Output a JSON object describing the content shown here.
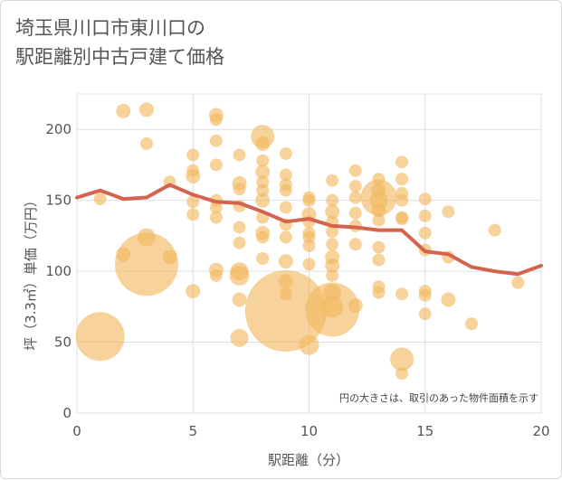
{
  "chart_data": {
    "type": "scatter",
    "title_lines": [
      "埼玉県川口市東川口の",
      "駅距離別中古戸建て価格"
    ],
    "xlabel": "駅距離（分）",
    "ylabel": "坪（3.3㎡）単価（万円）",
    "xlim": [
      0,
      20
    ],
    "ylim": [
      0,
      225
    ],
    "x_ticks": [
      0,
      5,
      10,
      15,
      20
    ],
    "y_ticks": [
      0,
      50,
      100,
      150,
      200
    ],
    "grid": true,
    "annotation": "円の大きさは、取引のあった物件面積を示す",
    "colors": {
      "bubble": "#f2b85e",
      "line": "#d4644e",
      "grid": "#d7e0ea",
      "text": "#555555"
    },
    "series": [
      {
        "kind": "bubble",
        "points": [
          {
            "x": 1,
            "y": 54,
            "r": 27
          },
          {
            "x": 1,
            "y": 151,
            "r": 7
          },
          {
            "x": 2,
            "y": 213,
            "r": 8
          },
          {
            "x": 2,
            "y": 112,
            "r": 8
          },
          {
            "x": 3,
            "y": 214,
            "r": 8
          },
          {
            "x": 3,
            "y": 190,
            "r": 7
          },
          {
            "x": 3,
            "y": 124,
            "r": 10
          },
          {
            "x": 3,
            "y": 105,
            "r": 35
          },
          {
            "x": 4,
            "y": 163,
            "r": 7
          },
          {
            "x": 4,
            "y": 110,
            "r": 8
          },
          {
            "x": 5,
            "y": 182,
            "r": 7
          },
          {
            "x": 5,
            "y": 171,
            "r": 7
          },
          {
            "x": 5,
            "y": 167,
            "r": 8
          },
          {
            "x": 5,
            "y": 149,
            "r": 7
          },
          {
            "x": 5,
            "y": 140,
            "r": 7
          },
          {
            "x": 5,
            "y": 86,
            "r": 8
          },
          {
            "x": 6,
            "y": 210,
            "r": 8
          },
          {
            "x": 6,
            "y": 207,
            "r": 7
          },
          {
            "x": 6,
            "y": 192,
            "r": 7
          },
          {
            "x": 6,
            "y": 175,
            "r": 7
          },
          {
            "x": 6,
            "y": 150,
            "r": 7
          },
          {
            "x": 6,
            "y": 145,
            "r": 7
          },
          {
            "x": 6,
            "y": 138,
            "r": 7
          },
          {
            "x": 6,
            "y": 101,
            "r": 8
          },
          {
            "x": 6,
            "y": 97,
            "r": 7
          },
          {
            "x": 7,
            "y": 182,
            "r": 7
          },
          {
            "x": 7,
            "y": 162,
            "r": 8
          },
          {
            "x": 7,
            "y": 158,
            "r": 7
          },
          {
            "x": 7,
            "y": 146,
            "r": 7
          },
          {
            "x": 7,
            "y": 131,
            "r": 7
          },
          {
            "x": 7,
            "y": 120,
            "r": 7
          },
          {
            "x": 7,
            "y": 100,
            "r": 10
          },
          {
            "x": 7,
            "y": 97,
            "r": 11
          },
          {
            "x": 7,
            "y": 80,
            "r": 8
          },
          {
            "x": 7,
            "y": 53,
            "r": 10
          },
          {
            "x": 8,
            "y": 195,
            "r": 13
          },
          {
            "x": 8,
            "y": 190,
            "r": 8
          },
          {
            "x": 8,
            "y": 178,
            "r": 7
          },
          {
            "x": 8,
            "y": 170,
            "r": 8
          },
          {
            "x": 8,
            "y": 163,
            "r": 7
          },
          {
            "x": 8,
            "y": 157,
            "r": 7
          },
          {
            "x": 8,
            "y": 150,
            "r": 8
          },
          {
            "x": 8,
            "y": 138,
            "r": 7
          },
          {
            "x": 8,
            "y": 127,
            "r": 8
          },
          {
            "x": 8,
            "y": 124,
            "r": 7
          },
          {
            "x": 8,
            "y": 109,
            "r": 7
          },
          {
            "x": 9,
            "y": 183,
            "r": 7
          },
          {
            "x": 9,
            "y": 168,
            "r": 7
          },
          {
            "x": 9,
            "y": 161,
            "r": 7
          },
          {
            "x": 9,
            "y": 157,
            "r": 7
          },
          {
            "x": 9,
            "y": 145,
            "r": 7
          },
          {
            "x": 9,
            "y": 133,
            "r": 7
          },
          {
            "x": 9,
            "y": 124,
            "r": 7
          },
          {
            "x": 9,
            "y": 107,
            "r": 8
          },
          {
            "x": 9,
            "y": 93,
            "r": 8
          },
          {
            "x": 9,
            "y": 84,
            "r": 7
          },
          {
            "x": 9,
            "y": 72,
            "r": 45
          },
          {
            "x": 10,
            "y": 152,
            "r": 7
          },
          {
            "x": 10,
            "y": 150,
            "r": 7
          },
          {
            "x": 10,
            "y": 140,
            "r": 8
          },
          {
            "x": 10,
            "y": 135,
            "r": 7
          },
          {
            "x": 10,
            "y": 127,
            "r": 7
          },
          {
            "x": 10,
            "y": 124,
            "r": 7
          },
          {
            "x": 10,
            "y": 118,
            "r": 7
          },
          {
            "x": 10,
            "y": 105,
            "r": 7
          },
          {
            "x": 10,
            "y": 48,
            "r": 11
          },
          {
            "x": 11,
            "y": 164,
            "r": 7
          },
          {
            "x": 11,
            "y": 150,
            "r": 7
          },
          {
            "x": 11,
            "y": 142,
            "r": 8
          },
          {
            "x": 11,
            "y": 135,
            "r": 7
          },
          {
            "x": 11,
            "y": 128,
            "r": 7
          },
          {
            "x": 11,
            "y": 119,
            "r": 7
          },
          {
            "x": 11,
            "y": 110,
            "r": 8
          },
          {
            "x": 11,
            "y": 104,
            "r": 8
          },
          {
            "x": 11,
            "y": 97,
            "r": 7
          },
          {
            "x": 11,
            "y": 85,
            "r": 10
          },
          {
            "x": 11,
            "y": 75,
            "r": 12
          },
          {
            "x": 11,
            "y": 73,
            "r": 30
          },
          {
            "x": 12,
            "y": 171,
            "r": 7
          },
          {
            "x": 12,
            "y": 160,
            "r": 7
          },
          {
            "x": 12,
            "y": 152,
            "r": 7
          },
          {
            "x": 12,
            "y": 141,
            "r": 7
          },
          {
            "x": 12,
            "y": 132,
            "r": 7
          },
          {
            "x": 12,
            "y": 119,
            "r": 7
          },
          {
            "x": 12,
            "y": 76,
            "r": 8
          },
          {
            "x": 13,
            "y": 165,
            "r": 7
          },
          {
            "x": 13,
            "y": 157,
            "r": 8
          },
          {
            "x": 13,
            "y": 152,
            "r": 20
          },
          {
            "x": 13,
            "y": 150,
            "r": 10
          },
          {
            "x": 13,
            "y": 143,
            "r": 8
          },
          {
            "x": 13,
            "y": 136,
            "r": 7
          },
          {
            "x": 13,
            "y": 117,
            "r": 7
          },
          {
            "x": 13,
            "y": 108,
            "r": 7
          },
          {
            "x": 13,
            "y": 89,
            "r": 7
          },
          {
            "x": 13,
            "y": 85,
            "r": 7
          },
          {
            "x": 14,
            "y": 177,
            "r": 7
          },
          {
            "x": 14,
            "y": 165,
            "r": 7
          },
          {
            "x": 14,
            "y": 155,
            "r": 7
          },
          {
            "x": 14,
            "y": 150,
            "r": 7
          },
          {
            "x": 14,
            "y": 138,
            "r": 7
          },
          {
            "x": 14,
            "y": 137,
            "r": 7
          },
          {
            "x": 14,
            "y": 84,
            "r": 7
          },
          {
            "x": 14,
            "y": 38,
            "r": 13
          },
          {
            "x": 14,
            "y": 28,
            "r": 7
          },
          {
            "x": 15,
            "y": 151,
            "r": 7
          },
          {
            "x": 15,
            "y": 139,
            "r": 7
          },
          {
            "x": 15,
            "y": 127,
            "r": 7
          },
          {
            "x": 15,
            "y": 115,
            "r": 7
          },
          {
            "x": 15,
            "y": 86,
            "r": 7
          },
          {
            "x": 15,
            "y": 83,
            "r": 7
          },
          {
            "x": 15,
            "y": 70,
            "r": 7
          },
          {
            "x": 16,
            "y": 142,
            "r": 7
          },
          {
            "x": 16,
            "y": 110,
            "r": 7
          },
          {
            "x": 16,
            "y": 80,
            "r": 8
          },
          {
            "x": 17,
            "y": 63,
            "r": 7
          },
          {
            "x": 18,
            "y": 129,
            "r": 7
          },
          {
            "x": 19,
            "y": 92,
            "r": 7
          }
        ]
      },
      {
        "kind": "line",
        "x": [
          0,
          1,
          2,
          3,
          4,
          5,
          6,
          7,
          8,
          9,
          10,
          11,
          12,
          13,
          14,
          15,
          16,
          17,
          18,
          19,
          20
        ],
        "y": [
          152,
          157,
          151,
          152,
          161,
          154,
          149,
          148,
          142,
          135,
          137,
          132,
          131,
          129,
          129,
          114,
          112,
          103,
          100,
          98,
          104
        ]
      }
    ]
  }
}
